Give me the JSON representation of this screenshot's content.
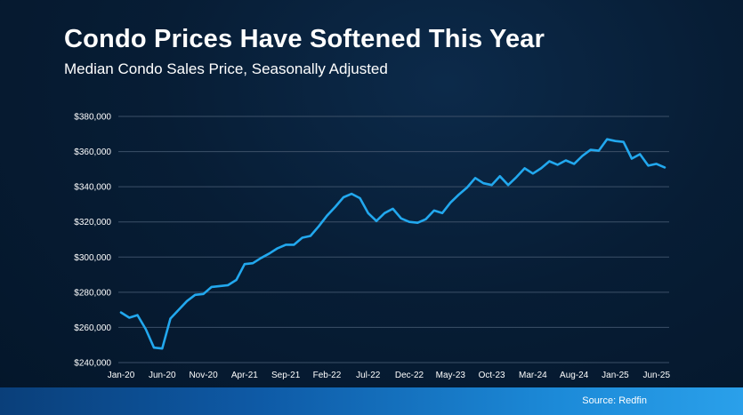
{
  "header": {
    "title": "Condo Prices Have Softened This Year",
    "subtitle": "Median Condo Sales Price, Seasonally Adjusted"
  },
  "footer": {
    "source": "Source: Redfin"
  },
  "colors": {
    "line": "#22a8ee",
    "grid": "#3c5068"
  },
  "chart_data": {
    "type": "line",
    "title": "Condo Prices Have Softened This Year",
    "subtitle": "Median Condo Sales Price, Seasonally Adjusted",
    "xlabel": "",
    "ylabel": "",
    "ylim": [
      240000,
      380000
    ],
    "yticks": [
      240000,
      260000,
      280000,
      300000,
      320000,
      340000,
      360000,
      380000
    ],
    "ytick_labels": [
      "$240,000",
      "$260,000",
      "$280,000",
      "$300,000",
      "$320,000",
      "$340,000",
      "$360,000",
      "$380,000"
    ],
    "xtick_labels": [
      "Jan-20",
      "Jun-20",
      "Nov-20",
      "Apr-21",
      "Sep-21",
      "Feb-22",
      "Jul-22",
      "Dec-22",
      "May-23",
      "Oct-23",
      "Mar-24",
      "Aug-24",
      "Jan-25",
      "Jun-25"
    ],
    "xtick_months": [
      0,
      5,
      10,
      15,
      20,
      25,
      30,
      35,
      40,
      45,
      50,
      55,
      60,
      65
    ],
    "grid": true,
    "series": [
      {
        "x": [
          "Jan-20",
          "Feb-20",
          "Mar-20",
          "Apr-20",
          "May-20",
          "Jun-20",
          "Jul-20",
          "Aug-20",
          "Sep-20",
          "Oct-20",
          "Nov-20",
          "Dec-20",
          "Jan-21",
          "Feb-21",
          "Mar-21",
          "Apr-21",
          "May-21",
          "Jun-21",
          "Jul-21",
          "Aug-21",
          "Sep-21",
          "Oct-21",
          "Nov-21",
          "Dec-21",
          "Jan-22",
          "Feb-22",
          "Mar-22",
          "Apr-22",
          "May-22",
          "Jun-22",
          "Jul-22",
          "Aug-22",
          "Sep-22",
          "Oct-22",
          "Nov-22",
          "Dec-22",
          "Jan-23",
          "Feb-23",
          "Mar-23",
          "Apr-23",
          "May-23",
          "Jun-23",
          "Jul-23",
          "Aug-23",
          "Sep-23",
          "Oct-23",
          "Nov-23",
          "Dec-23",
          "Jan-24",
          "Feb-24",
          "Mar-24",
          "Apr-24",
          "May-24",
          "Jun-24",
          "Jul-24",
          "Aug-24",
          "Sep-24",
          "Oct-24",
          "Nov-24",
          "Dec-24",
          "Jan-25",
          "Feb-25",
          "Mar-25",
          "Apr-25",
          "May-25",
          "Jun-25",
          "Jul-25"
        ],
        "values": [
          268500,
          265500,
          267000,
          259000,
          248500,
          248000,
          265000,
          270000,
          275000,
          278500,
          279000,
          283000,
          283500,
          284000,
          287000,
          296000,
          296500,
          299500,
          302000,
          305000,
          307000,
          307000,
          311000,
          312000,
          317500,
          323500,
          328500,
          334000,
          336000,
          333500,
          325000,
          320500,
          325000,
          327500,
          322000,
          320000,
          319500,
          321500,
          326500,
          325000,
          331000,
          335500,
          339500,
          345000,
          342000,
          341000,
          346000,
          341000,
          345500,
          350500,
          347500,
          350500,
          354500,
          352500,
          355000,
          353000,
          357500,
          361000,
          360500,
          367000,
          366000,
          365500,
          356000,
          358500,
          352000,
          353000,
          351000
        ]
      }
    ]
  }
}
